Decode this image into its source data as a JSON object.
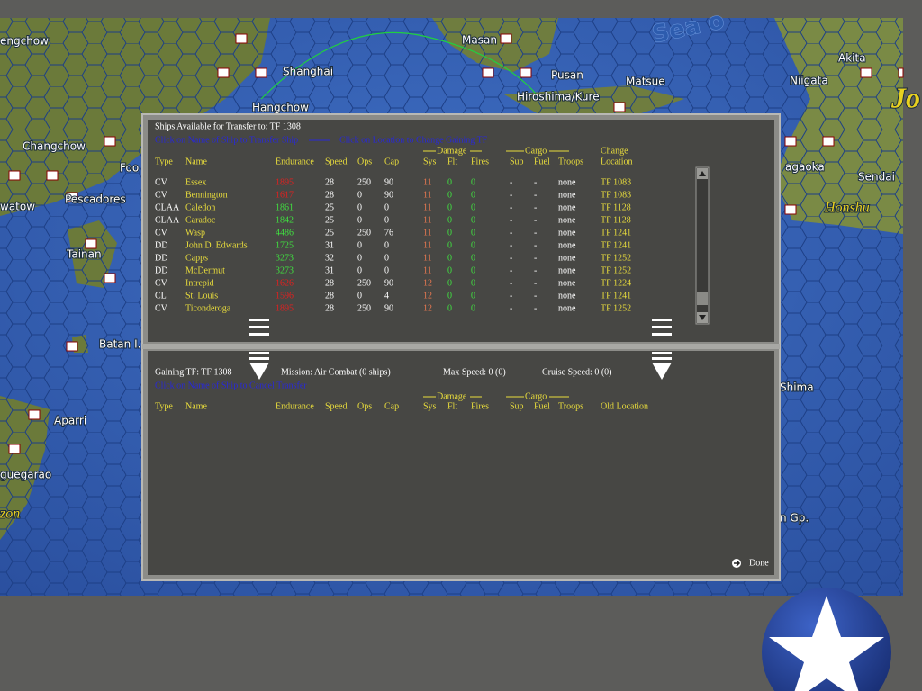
{
  "map": {
    "labels": [
      "engchow",
      "Shanghai",
      "Hangchow",
      "Masan",
      "Pusan",
      "Hiroshima/Kure",
      "Matsue",
      "Niigata",
      "Akita",
      "Sea o",
      "Jo",
      "Changchow",
      "Foo",
      "Pescadores",
      "watow",
      "Tainan",
      "Batan I.",
      "Aparri",
      "guegarao",
      "zon",
      "agaoka",
      "Sendai",
      "Honshu",
      "Shima",
      "n Gp."
    ]
  },
  "upper": {
    "title": "Ships Available for Transfer to: TF 1308",
    "hint_transfer": "Click on Name of Ship to Transfer Ship",
    "hint_location": "Click on Location to Change Gaining TF",
    "group_headers": {
      "damage": "Damage",
      "cargo": "Cargo",
      "change": "Change"
    },
    "columns": [
      "Type",
      "Name",
      "Endurance",
      "Speed",
      "Ops",
      "Cap",
      "Sys",
      "Flt",
      "Fires",
      "Sup",
      "Fuel",
      "Troops",
      "Location"
    ],
    "endurance_colors": [
      "#e02020",
      "#e02020",
      "#40e040",
      "#40e040",
      "#40e040",
      "#40e040",
      "#40e040",
      "#40e040",
      "#e02020",
      "#e02020",
      "#e02020"
    ],
    "rows": [
      [
        "CV",
        "Essex",
        1895,
        28,
        250,
        90,
        11,
        0,
        0,
        "-",
        "-",
        "none",
        "TF 1083"
      ],
      [
        "CV",
        "Bennington",
        1617,
        28,
        0,
        90,
        11,
        0,
        0,
        "-",
        "-",
        "none",
        "TF 1083"
      ],
      [
        "CLAA",
        "Caledon",
        1861,
        25,
        0,
        0,
        11,
        0,
        0,
        "-",
        "-",
        "none",
        "TF 1128"
      ],
      [
        "CLAA",
        "Caradoc",
        1842,
        25,
        0,
        0,
        11,
        0,
        0,
        "-",
        "-",
        "none",
        "TF 1128"
      ],
      [
        "CV",
        "Wasp",
        4486,
        25,
        250,
        76,
        11,
        0,
        0,
        "-",
        "-",
        "none",
        "TF 1241"
      ],
      [
        "DD",
        "John D. Edwards",
        1725,
        31,
        0,
        0,
        11,
        0,
        0,
        "-",
        "-",
        "none",
        "TF 1241"
      ],
      [
        "DD",
        "Capps",
        3273,
        32,
        0,
        0,
        11,
        0,
        0,
        "-",
        "-",
        "none",
        "TF 1252"
      ],
      [
        "DD",
        "McDermut",
        3273,
        31,
        0,
        0,
        11,
        0,
        0,
        "-",
        "-",
        "none",
        "TF 1252"
      ],
      [
        "CV",
        "Intrepid",
        1626,
        28,
        250,
        90,
        12,
        0,
        0,
        "-",
        "-",
        "none",
        "TF 1224"
      ],
      [
        "CL",
        "St. Louis",
        1596,
        28,
        0,
        4,
        12,
        0,
        0,
        "-",
        "-",
        "none",
        "TF 1241"
      ],
      [
        "CV",
        "Ticonderoga",
        1895,
        28,
        250,
        90,
        12,
        0,
        0,
        "-",
        "-",
        "none",
        "TF 1252"
      ]
    ]
  },
  "lower": {
    "gaining_tf": "Gaining TF: TF 1308",
    "mission": "Mission: Air Combat (0 ships)",
    "max_speed": "Max Speed: 0 (0)",
    "cruise_speed": "Cruise Speed: 0 (0)",
    "hint_cancel": "Click on Name of Ship to Cancel Transfer",
    "group_headers": {
      "damage": "Damage",
      "cargo": "Cargo"
    },
    "columns": [
      "Type",
      "Name",
      "Endurance",
      "Speed",
      "Ops",
      "Cap",
      "Sys",
      "Flt",
      "Fires",
      "Sup",
      "Fuel",
      "Troops",
      "Old Location"
    ]
  },
  "done": "Done"
}
